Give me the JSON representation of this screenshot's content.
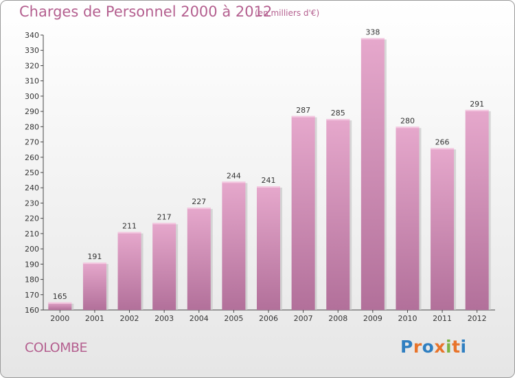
{
  "chart_data": {
    "type": "bar",
    "title": "Charges de Personnel 2000 à 2012",
    "subtitle": "(en milliers d'€)",
    "categories": [
      "2000",
      "2001",
      "2002",
      "2003",
      "2004",
      "2005",
      "2006",
      "2007",
      "2008",
      "2009",
      "2010",
      "2011",
      "2012"
    ],
    "values": [
      165,
      191,
      211,
      217,
      227,
      244,
      241,
      287,
      285,
      338,
      280,
      266,
      291
    ],
    "ylim": [
      160,
      340
    ],
    "yticks": [
      160,
      170,
      180,
      190,
      200,
      210,
      220,
      230,
      240,
      250,
      260,
      270,
      280,
      290,
      300,
      310,
      320,
      330,
      340
    ],
    "xlabel": "",
    "ylabel": "",
    "grid": false,
    "bar_color": "#c77aa6",
    "bar_gradient": [
      "#e6a8cc",
      "#b2709a"
    ]
  },
  "footer": {
    "commune": "COLOMBE",
    "logo_text": "Proxiti",
    "logo_colors": [
      "#2f7fc1",
      "#e8742b",
      "#2f7fc1",
      "#e8742b",
      "#7cb342",
      "#e8742b",
      "#2f7fc1"
    ]
  }
}
